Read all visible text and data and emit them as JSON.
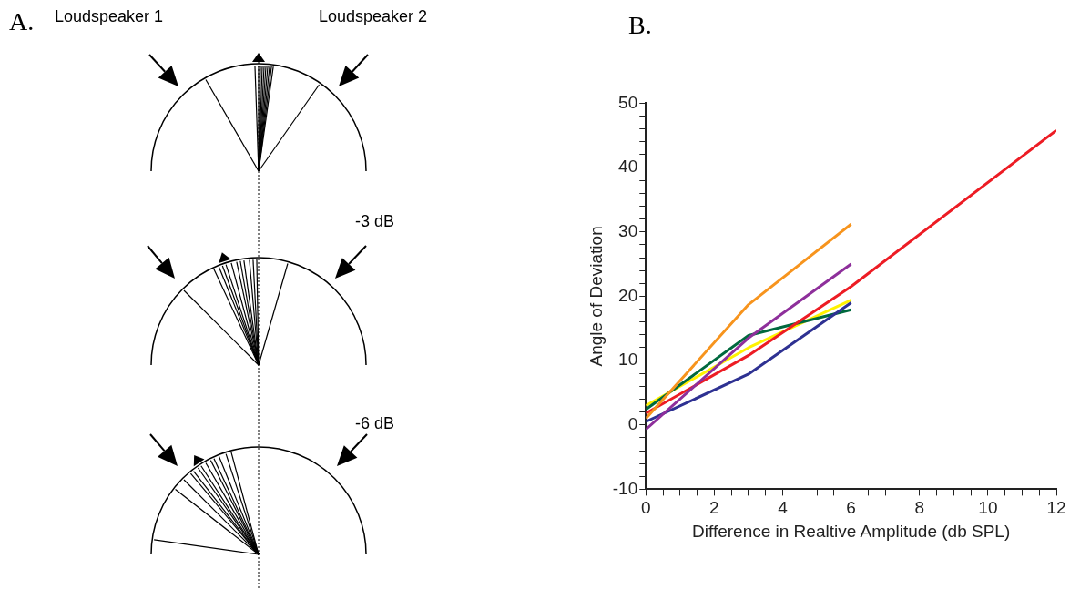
{
  "chart_data": [
    {
      "type": "other",
      "title": "A.",
      "annotations": [
        "Loudspeaker 1",
        "Loudspeaker 2",
        "-3 dB",
        "-6 dB"
      ]
    },
    {
      "type": "line",
      "title": "B.",
      "xlabel": "Difference in Realtive Amplitude (db SPL)",
      "ylabel": "Angle of Deviation",
      "grid": false,
      "legend": false,
      "marker": "none",
      "xlim": [
        0,
        12
      ],
      "ylim": [
        -10,
        50
      ],
      "xticks": [
        0,
        {
          "value": 0.5,
          "label": null
        },
        {
          "value": 1,
          "label": null
        },
        {
          "value": 1.5,
          "label": null
        },
        2,
        {
          "value": 2.5,
          "label": null
        },
        {
          "value": 3,
          "label": null
        },
        {
          "value": 3.5,
          "label": null
        },
        4,
        {
          "value": 4.5,
          "label": null
        },
        {
          "value": 5,
          "label": null
        },
        {
          "value": 5.5,
          "label": null
        },
        6,
        {
          "value": 6.5,
          "label": null
        },
        {
          "value": 7,
          "label": null
        },
        {
          "value": 7.5,
          "label": null
        },
        8,
        {
          "value": 8.5,
          "label": null
        },
        {
          "value": 9,
          "label": null
        },
        {
          "value": 9.5,
          "label": null
        },
        10,
        {
          "value": 10.5,
          "label": null
        },
        {
          "value": 11,
          "label": null
        },
        {
          "value": 11.5,
          "label": null
        },
        12
      ],
      "yticks": [
        -10,
        {
          "value": -8,
          "label": null
        },
        {
          "value": -6,
          "label": null
        },
        {
          "value": -4,
          "label": null
        },
        {
          "value": -2,
          "label": null
        },
        0,
        {
          "value": 2,
          "label": null
        },
        {
          "value": 4,
          "label": null
        },
        {
          "value": 6,
          "label": null
        },
        {
          "value": 8,
          "label": null
        },
        10,
        {
          "value": 12,
          "label": null
        },
        {
          "value": 14,
          "label": null
        },
        {
          "value": 16,
          "label": null
        },
        {
          "value": 18,
          "label": null
        },
        20,
        {
          "value": 22,
          "label": null
        },
        {
          "value": 24,
          "label": null
        },
        {
          "value": 26,
          "label": null
        },
        {
          "value": 28,
          "label": null
        },
        30,
        {
          "value": 32,
          "label": null
        },
        {
          "value": 34,
          "label": null
        },
        {
          "value": 36,
          "label": null
        },
        {
          "value": 38,
          "label": null
        },
        40,
        {
          "value": 42,
          "label": null
        },
        {
          "value": 44,
          "label": null
        },
        {
          "value": 46,
          "label": null
        },
        {
          "value": 48,
          "label": null
        },
        50
      ],
      "series": [
        {
          "color": "#f7941d",
          "x": [
            0,
            3,
            6
          ],
          "values": [
            1,
            18.7,
            31.2
          ]
        },
        {
          "color": "#8e2f9b",
          "x": [
            0,
            3,
            6
          ],
          "values": [
            -0.7,
            13.5,
            25
          ]
        },
        {
          "color": "#ed1c24",
          "x": [
            0,
            3,
            6,
            12
          ],
          "values": [
            1.8,
            10.8,
            21.5,
            45.8
          ]
        },
        {
          "color": "#2e3192",
          "x": [
            0,
            3,
            6
          ],
          "values": [
            0.5,
            7.9,
            19
          ]
        },
        {
          "color": "#00693e",
          "x": [
            0,
            3,
            6
          ],
          "values": [
            2.4,
            13.9,
            17.9
          ]
        },
        {
          "color": "#fff200",
          "x": [
            0,
            3,
            6
          ],
          "values": [
            3,
            12,
            19.4
          ]
        }
      ]
    }
  ]
}
